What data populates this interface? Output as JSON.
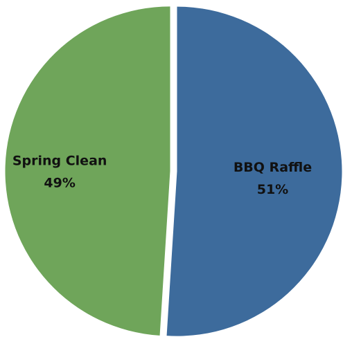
{
  "chart_data": {
    "type": "pie",
    "title": "",
    "slices": [
      {
        "name": "BBQ Raffle",
        "value": 51,
        "label": "51%",
        "color": "#3d6b9c"
      },
      {
        "name": "Spring Clean",
        "value": 49,
        "label": "49%",
        "color": "#6fa55a"
      }
    ],
    "legend": "none",
    "start_angle_deg": 0,
    "direction": "clockwise",
    "exploded": true
  }
}
